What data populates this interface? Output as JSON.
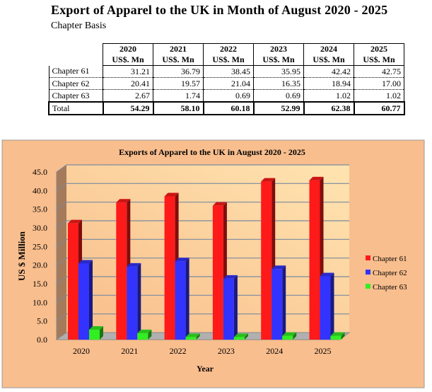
{
  "header": {
    "title": "Export of Apparel to the UK in Month of August 2020 - 2025",
    "subtitle": "Chapter Basis"
  },
  "table": {
    "columns": [
      {
        "year": "2020",
        "unit": "US$. Mn"
      },
      {
        "year": "2021",
        "unit": "US$. Mn"
      },
      {
        "year": "2022",
        "unit": "US$. Mn"
      },
      {
        "year": "2023",
        "unit": "US$. Mn"
      },
      {
        "year": "2024",
        "unit": "US$. Mn"
      },
      {
        "year": "2025",
        "unit": "US$. Mn"
      }
    ],
    "rows": [
      {
        "label": "Chapter 61",
        "values": [
          "31.21",
          "36.79",
          "38.45",
          "35.95",
          "42.42",
          "42.75"
        ]
      },
      {
        "label": "Chapter 62",
        "values": [
          "20.41",
          "19.57",
          "21.04",
          "16.35",
          "18.94",
          "17.00"
        ]
      },
      {
        "label": "Chapter 63",
        "values": [
          "2.67",
          "1.74",
          "0.69",
          "0.69",
          "1.02",
          "1.02"
        ]
      }
    ],
    "total": {
      "label": "Total",
      "values": [
        "54.29",
        "58.10",
        "60.18",
        "52.99",
        "62.38",
        "60.77"
      ]
    }
  },
  "chart_data": {
    "type": "bar",
    "title": "Exports of Apparel to the UK in August 2020 - 2025",
    "xlabel": "Year",
    "ylabel": "US $ Million",
    "categories": [
      "2020",
      "2021",
      "2022",
      "2023",
      "2024",
      "2025"
    ],
    "series": [
      {
        "name": "Chapter 61",
        "color": "#ff1a1a",
        "values": [
          31.21,
          36.79,
          38.45,
          35.95,
          42.42,
          42.75
        ]
      },
      {
        "name": "Chapter 62",
        "color": "#3333ff",
        "values": [
          20.41,
          19.57,
          21.04,
          16.35,
          18.94,
          17.0
        ]
      },
      {
        "name": "Chapter 63",
        "color": "#33ee22",
        "values": [
          2.67,
          1.74,
          0.69,
          0.69,
          1.02,
          1.02
        ]
      }
    ],
    "ylim": [
      0,
      45
    ],
    "yticks": [
      "0.0",
      "5.0",
      "10.0",
      "15.0",
      "20.0",
      "25.0",
      "30.0",
      "35.0",
      "40.0",
      "45.0"
    ],
    "legend": "right",
    "grid": true
  }
}
